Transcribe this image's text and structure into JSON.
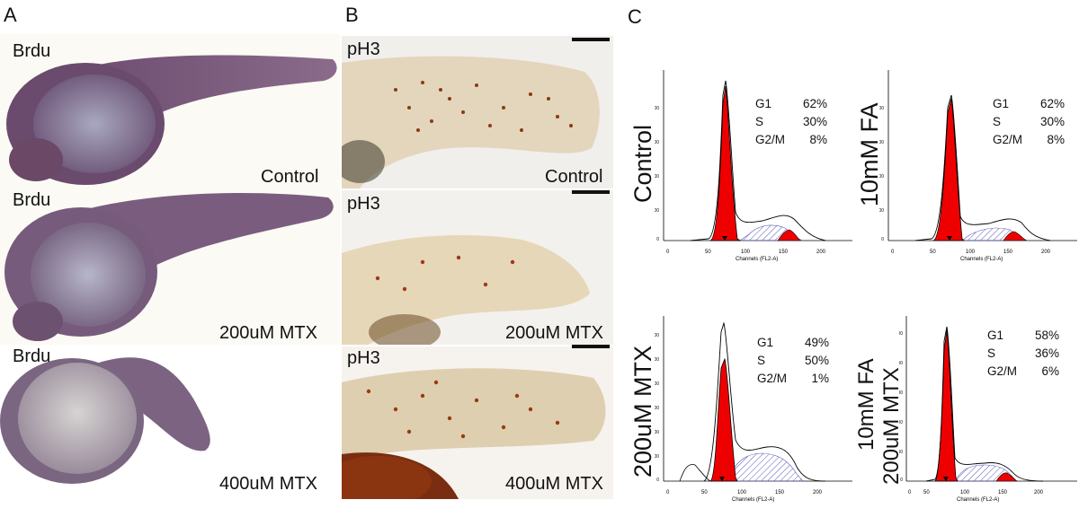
{
  "panels": {
    "A": {
      "letter": "A",
      "images": [
        {
          "stain": "Brdu",
          "condition": "Control"
        },
        {
          "stain": "Brdu",
          "condition": "200uM MTX"
        },
        {
          "stain": "Brdu",
          "condition": "400uM MTX"
        }
      ]
    },
    "B": {
      "letter": "B",
      "images": [
        {
          "stain": "pH3",
          "condition": "Control"
        },
        {
          "stain": "pH3",
          "condition": "200uM MTX"
        },
        {
          "stain": "pH3",
          "condition": "400uM MTX"
        }
      ]
    },
    "C": {
      "letter": "C",
      "axis_title": "Channels (FL2-A)",
      "x_ticks": [
        "0",
        "50",
        "100",
        "150",
        "200"
      ],
      "plots": [
        {
          "condition_lines": [
            "Control"
          ],
          "stats": [
            {
              "phase": "G1",
              "pct": "62%"
            },
            {
              "phase": "S",
              "pct": "30%"
            },
            {
              "phase": "G2/M",
              "pct": "8%"
            }
          ],
          "y_ticks": [
            "0",
            "200",
            "400",
            "600",
            "800"
          ]
        },
        {
          "condition_lines": [
            "10mM FA"
          ],
          "stats": [
            {
              "phase": "G1",
              "pct": "62%"
            },
            {
              "phase": "S",
              "pct": "30%"
            },
            {
              "phase": "G2/M",
              "pct": "8%"
            }
          ],
          "y_ticks": [
            "0",
            "200",
            "400",
            "600",
            "800"
          ]
        },
        {
          "condition_lines": [
            "200uM MTX"
          ],
          "stats": [
            {
              "phase": "G1",
              "pct": "49%"
            },
            {
              "phase": "S",
              "pct": "50%"
            },
            {
              "phase": "G2/M",
              "pct": "1%"
            }
          ],
          "y_ticks": [
            "0",
            "100",
            "200",
            "300",
            "400",
            "500",
            "600"
          ]
        },
        {
          "condition_lines": [
            "10mM FA",
            "200uM MTX"
          ],
          "stats": [
            {
              "phase": "G1",
              "pct": "58%"
            },
            {
              "phase": "S",
              "pct": "36%"
            },
            {
              "phase": "G2/M",
              "pct": "6%"
            }
          ],
          "y_ticks": [
            "0",
            "100",
            "200",
            "300",
            "400",
            "500"
          ]
        }
      ]
    }
  },
  "colors": {
    "g1_fill": "#ee0000",
    "s_hatch": "#5a5ab8",
    "embryo_purple": "#6e5070",
    "embryo_tan": "#dcc9a4"
  }
}
